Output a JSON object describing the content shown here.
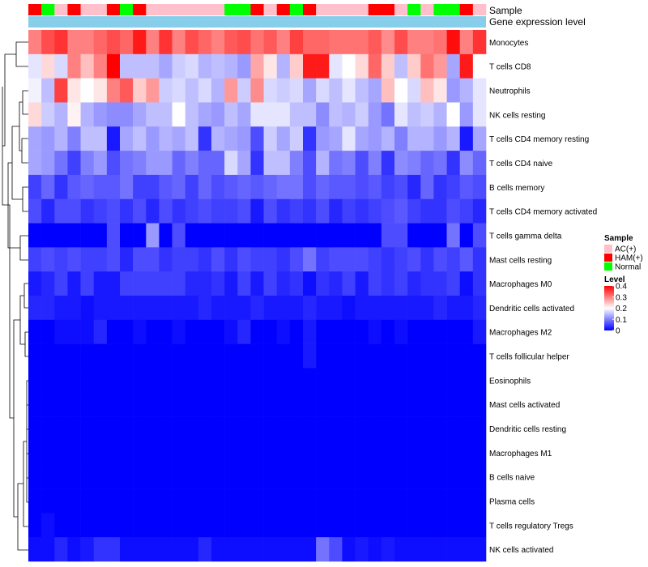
{
  "chart_data": {
    "type": "heatmap",
    "title": "",
    "annotation_labels": {
      "sample": "Sample",
      "expression": "Gene expression level"
    },
    "legend": {
      "sample_title": "Sample",
      "sample_entries": [
        {
          "label": "AC(+)",
          "color": "#ffc0cb"
        },
        {
          "label": "HAM(+)",
          "color": "#ff0000"
        },
        {
          "label": "Normal",
          "color": "#00ff00"
        }
      ],
      "level_title": "Level",
      "level_ticks": [
        "0.4",
        "0.3",
        "0.2",
        "0.1",
        "0"
      ],
      "placement": "right"
    },
    "color_scale": {
      "low": "#0000ff",
      "mid": "#ffffff",
      "high": "#ff0000",
      "min": 0,
      "max": 0.4
    },
    "expression_bar_color": "#87ceeb",
    "samples": [
      "HAM(+)",
      "Normal",
      "AC(+)",
      "HAM(+)",
      "AC(+)",
      "AC(+)",
      "HAM(+)",
      "Normal",
      "HAM(+)",
      "AC(+)",
      "AC(+)",
      "AC(+)",
      "AC(+)",
      "AC(+)",
      "AC(+)",
      "Normal",
      "Normal",
      "HAM(+)",
      "AC(+)",
      "HAM(+)",
      "Normal",
      "HAM(+)",
      "AC(+)",
      "AC(+)",
      "AC(+)",
      "AC(+)",
      "HAM(+)",
      "HAM(+)",
      "AC(+)",
      "Normal",
      "AC(+)",
      "Normal",
      "Normal",
      "HAM(+)",
      "AC(+)"
    ],
    "rows": [
      {
        "label": "Monocytes",
        "values": [
          0.3,
          0.34,
          0.36,
          0.3,
          0.3,
          0.32,
          0.34,
          0.32,
          0.38,
          0.3,
          0.36,
          0.3,
          0.34,
          0.32,
          0.3,
          0.33,
          0.34,
          0.31,
          0.33,
          0.3,
          0.35,
          0.32,
          0.32,
          0.31,
          0.31,
          0.31,
          0.33,
          0.29,
          0.34,
          0.3,
          0.3,
          0.31,
          0.39,
          0.3,
          0.36
        ]
      },
      {
        "label": "T cells CD8",
        "values": [
          0.18,
          0.23,
          0.17,
          0.3,
          0.25,
          0.3,
          0.4,
          0.15,
          0.15,
          0.15,
          0.13,
          0.16,
          0.17,
          0.14,
          0.15,
          0.14,
          0.12,
          0.27,
          0.22,
          0.14,
          0.24,
          0.38,
          0.38,
          0.18,
          0.2,
          0.23,
          0.32,
          0.24,
          0.15,
          0.24,
          0.31,
          0.28,
          0.13,
          0.38,
          0.2
        ]
      },
      {
        "label": "Neutrophils",
        "values": [
          0.19,
          0.15,
          0.35,
          0.22,
          0.2,
          0.22,
          0.3,
          0.33,
          0.24,
          0.28,
          0.16,
          0.17,
          0.15,
          0.17,
          0.14,
          0.28,
          0.16,
          0.29,
          0.17,
          0.16,
          0.17,
          0.13,
          0.17,
          0.15,
          0.18,
          0.15,
          0.13,
          0.25,
          0.2,
          0.17,
          0.25,
          0.22,
          0.12,
          0.14,
          0.18
        ]
      },
      {
        "label": "NK cells resting",
        "values": [
          0.23,
          0.16,
          0.14,
          0.21,
          0.14,
          0.12,
          0.11,
          0.11,
          0.13,
          0.15,
          0.15,
          0.2,
          0.15,
          0.13,
          0.12,
          0.15,
          0.13,
          0.18,
          0.18,
          0.18,
          0.15,
          0.15,
          0.11,
          0.15,
          0.14,
          0.16,
          0.12,
          0.09,
          0.18,
          0.15,
          0.16,
          0.14,
          0.2,
          0.12,
          0.18
        ]
      },
      {
        "label": "T cells CD4 memory resting",
        "values": [
          0.13,
          0.12,
          0.14,
          0.1,
          0.15,
          0.15,
          0.02,
          0.13,
          0.15,
          0.12,
          0.14,
          0.13,
          0.15,
          0.04,
          0.14,
          0.13,
          0.12,
          0.06,
          0.16,
          0.13,
          0.16,
          0.04,
          0.12,
          0.13,
          0.18,
          0.13,
          0.12,
          0.14,
          0.1,
          0.14,
          0.14,
          0.12,
          0.14,
          0.02,
          0.13
        ]
      },
      {
        "label": "T cells CD4 naive",
        "values": [
          0.13,
          0.12,
          0.09,
          0.05,
          0.1,
          0.12,
          0.06,
          0.09,
          0.1,
          0.12,
          0.12,
          0.08,
          0.1,
          0.08,
          0.08,
          0.17,
          0.13,
          0.04,
          0.15,
          0.15,
          0.1,
          0.06,
          0.14,
          0.09,
          0.1,
          0.06,
          0.1,
          0.04,
          0.11,
          0.1,
          0.08,
          0.09,
          0.04,
          0.11,
          0.08
        ]
      },
      {
        "label": "B cells memory",
        "values": [
          0.05,
          0.08,
          0.04,
          0.07,
          0.08,
          0.07,
          0.07,
          0.09,
          0.05,
          0.05,
          0.07,
          0.08,
          0.05,
          0.08,
          0.06,
          0.07,
          0.08,
          0.07,
          0.08,
          0.09,
          0.09,
          0.06,
          0.08,
          0.07,
          0.07,
          0.06,
          0.07,
          0.05,
          0.06,
          0.03,
          0.08,
          0.04,
          0.05,
          0.07,
          0.06
        ]
      },
      {
        "label": "T cells CD4 memory activated",
        "values": [
          0.06,
          0.03,
          0.06,
          0.06,
          0.04,
          0.05,
          0.06,
          0.04,
          0.06,
          0.03,
          0.06,
          0.04,
          0.05,
          0.06,
          0.05,
          0.05,
          0.06,
          0.02,
          0.06,
          0.04,
          0.05,
          0.04,
          0.06,
          0.03,
          0.05,
          0.04,
          0.05,
          0.06,
          0.07,
          0.05,
          0.04,
          0.04,
          0.06,
          0.05,
          0.03
        ]
      },
      {
        "label": "T cells gamma delta",
        "values": [
          0.0,
          0.0,
          0.0,
          0.0,
          0.0,
          0.0,
          0.06,
          0.0,
          0.0,
          0.12,
          0.0,
          0.06,
          0.0,
          0.0,
          0.0,
          0.0,
          0.0,
          0.0,
          0.0,
          0.0,
          0.0,
          0.0,
          0.0,
          0.0,
          0.0,
          0.0,
          0.0,
          0.06,
          0.06,
          0.0,
          0.0,
          0.0,
          0.09,
          0.0,
          0.06
        ]
      },
      {
        "label": "Mast cells resting",
        "values": [
          0.05,
          0.06,
          0.05,
          0.06,
          0.05,
          0.05,
          0.06,
          0.03,
          0.06,
          0.06,
          0.04,
          0.05,
          0.05,
          0.04,
          0.06,
          0.04,
          0.06,
          0.05,
          0.05,
          0.04,
          0.06,
          0.09,
          0.05,
          0.06,
          0.06,
          0.06,
          0.05,
          0.04,
          0.05,
          0.06,
          0.04,
          0.06,
          0.05,
          0.07,
          0.04
        ]
      },
      {
        "label": "Macrophages M0",
        "values": [
          0.02,
          0.03,
          0.05,
          0.02,
          0.05,
          0.02,
          0.02,
          0.05,
          0.05,
          0.05,
          0.05,
          0.05,
          0.03,
          0.03,
          0.04,
          0.02,
          0.05,
          0.02,
          0.05,
          0.03,
          0.04,
          0.01,
          0.04,
          0.03,
          0.05,
          0.02,
          0.05,
          0.04,
          0.05,
          0.03,
          0.04,
          0.04,
          0.05,
          0.01,
          0.04
        ]
      },
      {
        "label": "Dendritic cells activated",
        "values": [
          0.03,
          0.03,
          0.02,
          0.02,
          0.01,
          0.02,
          0.02,
          0.02,
          0.02,
          0.02,
          0.02,
          0.02,
          0.02,
          0.03,
          0.02,
          0.02,
          0.02,
          0.03,
          0.02,
          0.02,
          0.02,
          0.03,
          0.02,
          0.02,
          0.01,
          0.02,
          0.02,
          0.02,
          0.02,
          0.02,
          0.02,
          0.03,
          0.02,
          0.02,
          0.03
        ]
      },
      {
        "label": "Macrophages M2",
        "values": [
          0.0,
          0.0,
          0.01,
          0.01,
          0.01,
          0.03,
          0.0,
          0.0,
          0.01,
          0.0,
          0.0,
          0.01,
          0.0,
          0.0,
          0.0,
          0.01,
          0.03,
          0.0,
          0.0,
          0.01,
          0.0,
          0.02,
          0.0,
          0.0,
          0.0,
          0.0,
          0.01,
          0.0,
          0.01,
          0.0,
          0.0,
          0.0,
          0.0,
          0.0,
          0.02
        ]
      },
      {
        "label": "T cells follicular helper",
        "values": [
          0.0,
          0.0,
          0.0,
          0.0,
          0.0,
          0.0,
          0.0,
          0.0,
          0.0,
          0.0,
          0.0,
          0.0,
          0.0,
          0.0,
          0.0,
          0.0,
          0.0,
          0.0,
          0.0,
          0.0,
          0.0,
          0.02,
          0.0,
          0.0,
          0.0,
          0.0,
          0.0,
          0.0,
          0.0,
          0.0,
          0.0,
          0.0,
          0.0,
          0.0,
          0.0
        ]
      },
      {
        "label": "Eosinophils",
        "values": [
          0,
          0,
          0,
          0,
          0,
          0,
          0,
          0,
          0,
          0,
          0,
          0,
          0,
          0,
          0,
          0,
          0,
          0,
          0,
          0,
          0,
          0,
          0,
          0,
          0,
          0,
          0,
          0,
          0,
          0,
          0,
          0,
          0,
          0,
          0
        ]
      },
      {
        "label": "Mast cells activated",
        "values": [
          0,
          0,
          0,
          0,
          0,
          0,
          0,
          0,
          0,
          0,
          0,
          0,
          0,
          0,
          0,
          0,
          0,
          0,
          0,
          0,
          0,
          0,
          0,
          0,
          0,
          0,
          0,
          0,
          0,
          0,
          0,
          0,
          0,
          0,
          0
        ]
      },
      {
        "label": "Dendritic cells resting",
        "values": [
          0,
          0,
          0,
          0,
          0,
          0,
          0,
          0,
          0,
          0,
          0,
          0,
          0,
          0,
          0,
          0,
          0,
          0,
          0,
          0,
          0,
          0,
          0,
          0,
          0,
          0,
          0,
          0,
          0,
          0,
          0,
          0,
          0,
          0,
          0
        ]
      },
      {
        "label": "Macrophages M1",
        "values": [
          0,
          0,
          0,
          0,
          0,
          0,
          0,
          0,
          0,
          0,
          0,
          0,
          0,
          0,
          0,
          0,
          0,
          0,
          0,
          0,
          0,
          0,
          0,
          0,
          0,
          0,
          0,
          0,
          0,
          0,
          0,
          0,
          0,
          0,
          0
        ]
      },
      {
        "label": "B cells naive",
        "values": [
          0,
          0,
          0,
          0,
          0,
          0,
          0,
          0,
          0,
          0,
          0,
          0,
          0,
          0,
          0,
          0,
          0,
          0,
          0,
          0,
          0,
          0,
          0,
          0,
          0,
          0,
          0,
          0,
          0,
          0,
          0,
          0,
          0,
          0,
          0
        ]
      },
      {
        "label": "Plasma cells",
        "values": [
          0,
          0,
          0,
          0,
          0,
          0,
          0,
          0,
          0,
          0,
          0,
          0,
          0,
          0,
          0,
          0,
          0,
          0,
          0,
          0,
          0,
          0,
          0,
          0,
          0,
          0,
          0,
          0,
          0,
          0,
          0,
          0,
          0,
          0,
          0
        ]
      },
      {
        "label": "T cells regulatory  Tregs",
        "values": [
          0.0,
          0.01,
          0.0,
          0.0,
          0.0,
          0.0,
          0.0,
          0.0,
          0.0,
          0.0,
          0.0,
          0.0,
          0.0,
          0.0,
          0.0,
          0.0,
          0.0,
          0.0,
          0.0,
          0.0,
          0.0,
          0.0,
          0.0,
          0.0,
          0.0,
          0.0,
          0.0,
          0.0,
          0.0,
          0.0,
          0.0,
          0.0,
          0.0,
          0.0,
          0.0
        ]
      },
      {
        "label": "NK cells activated",
        "values": [
          0.01,
          0.01,
          0.03,
          0.01,
          0.02,
          0.04,
          0.04,
          0.01,
          0.01,
          0.01,
          0.01,
          0.01,
          0.01,
          0.03,
          0.01,
          0.01,
          0.01,
          0.01,
          0.01,
          0.01,
          0.01,
          0.01,
          0.09,
          0.06,
          0.01,
          0.02,
          0.01,
          0.02,
          0.01,
          0.01,
          0.01,
          0.01,
          0.01,
          0.01,
          0.01
        ]
      }
    ]
  }
}
